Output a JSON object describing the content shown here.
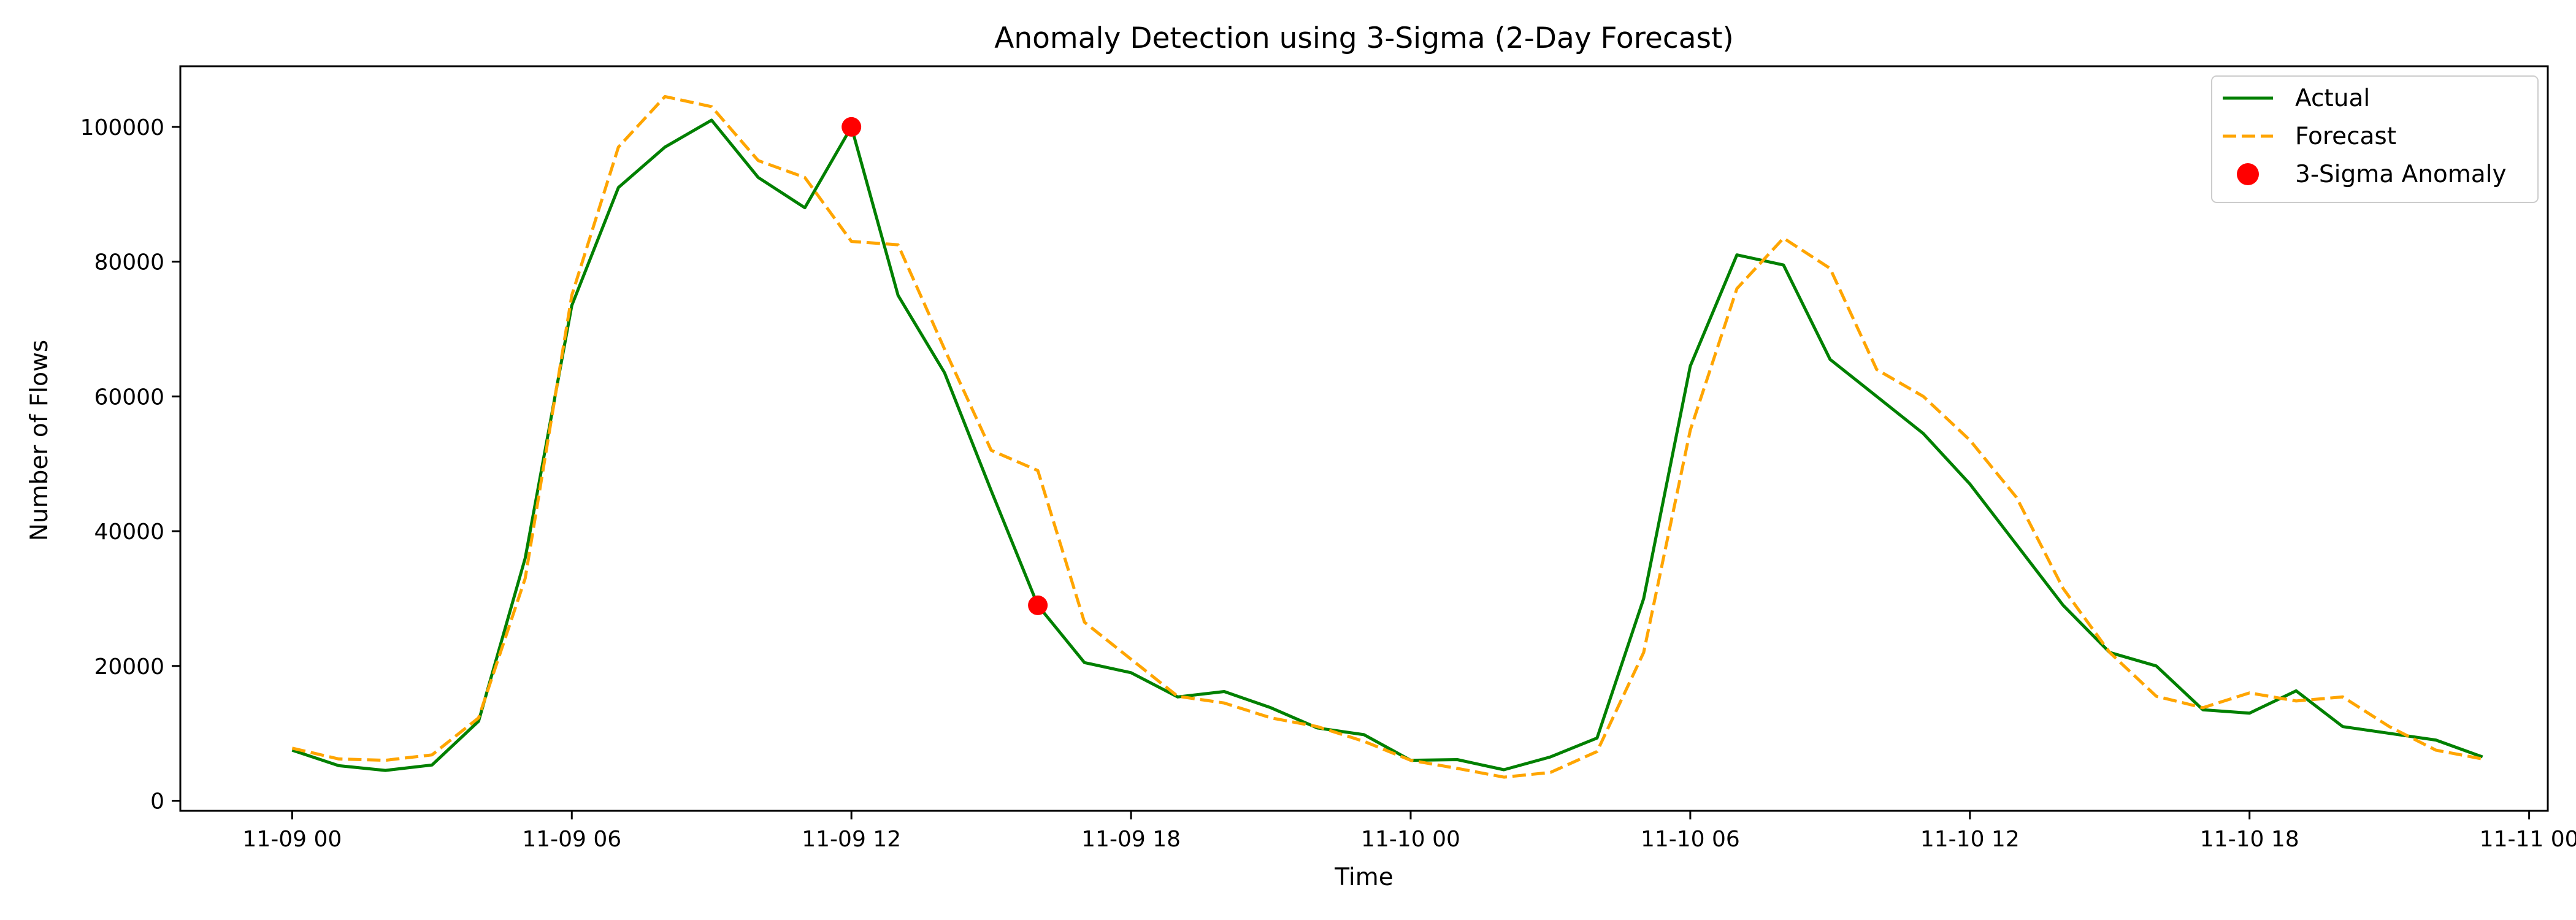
{
  "chart_data": {
    "type": "line",
    "title": "Anomaly Detection using 3-Sigma (2-Day Forecast)",
    "xlabel": "Time",
    "ylabel": "Number of Flows",
    "xlim_hours": [
      -2.4,
      48.4
    ],
    "ylim": [
      -1500,
      109000
    ],
    "x_ticks": [
      {
        "hour": 0,
        "label": "11-09 00"
      },
      {
        "hour": 6,
        "label": "11-09 06"
      },
      {
        "hour": 12,
        "label": "11-09 12"
      },
      {
        "hour": 18,
        "label": "11-09 18"
      },
      {
        "hour": 24,
        "label": "11-10 00"
      },
      {
        "hour": 30,
        "label": "11-10 06"
      },
      {
        "hour": 36,
        "label": "11-10 12"
      },
      {
        "hour": 42,
        "label": "11-10 18"
      },
      {
        "hour": 48,
        "label": "11-11 00"
      }
    ],
    "y_ticks": [
      0,
      20000,
      40000,
      60000,
      80000,
      100000
    ],
    "x_hours": [
      0,
      1,
      2,
      3,
      4,
      5,
      6,
      7,
      8,
      9,
      10,
      11,
      12,
      13,
      14,
      15,
      16,
      17,
      18,
      19,
      20,
      21,
      22,
      23,
      24,
      25,
      26,
      27,
      28,
      29,
      30,
      31,
      32,
      33,
      34,
      35,
      36,
      37,
      38,
      39,
      40,
      41,
      42,
      43,
      44,
      45,
      46,
      47
    ],
    "series": [
      {
        "name": "Actual",
        "color": "#008000",
        "style": "solid",
        "values": [
          7500,
          5200,
          4500,
          5300,
          11800,
          36000,
          73500,
          91000,
          97000,
          101000,
          92500,
          88000,
          100000,
          75000,
          63500,
          46000,
          29000,
          20500,
          19000,
          15400,
          16200,
          13800,
          10800,
          9800,
          6000,
          6100,
          4600,
          6500,
          9300,
          30000,
          64500,
          81000,
          79500,
          65500,
          60000,
          54500,
          47000,
          38000,
          29000,
          22000,
          20000,
          13500,
          13000,
          16300,
          11000,
          10000,
          9000,
          6500
        ]
      },
      {
        "name": "Forecast",
        "color": "#FFA500",
        "style": "dashed",
        "values": [
          7800,
          6200,
          6000,
          6800,
          12300,
          33000,
          75000,
          97000,
          104500,
          103000,
          95000,
          92500,
          83000,
          82500,
          67000,
          52000,
          49000,
          26500,
          21000,
          15500,
          14500,
          12300,
          11000,
          8800,
          6000,
          4800,
          3500,
          4200,
          7300,
          22000,
          55000,
          76000,
          83500,
          79000,
          64000,
          60000,
          53500,
          45000,
          31500,
          22000,
          15500,
          13800,
          16000,
          14800,
          15400,
          11000,
          7500,
          6200
        ]
      }
    ],
    "anomalies": {
      "name": "3-Sigma Anomaly",
      "color": "#FF0000",
      "points": [
        {
          "hour": 12,
          "value": 100000
        },
        {
          "hour": 16,
          "value": 29000
        }
      ]
    },
    "legend": {
      "placement": "top-right",
      "entries": [
        "Actual",
        "Forecast",
        "3-Sigma Anomaly"
      ]
    },
    "grid": false
  }
}
